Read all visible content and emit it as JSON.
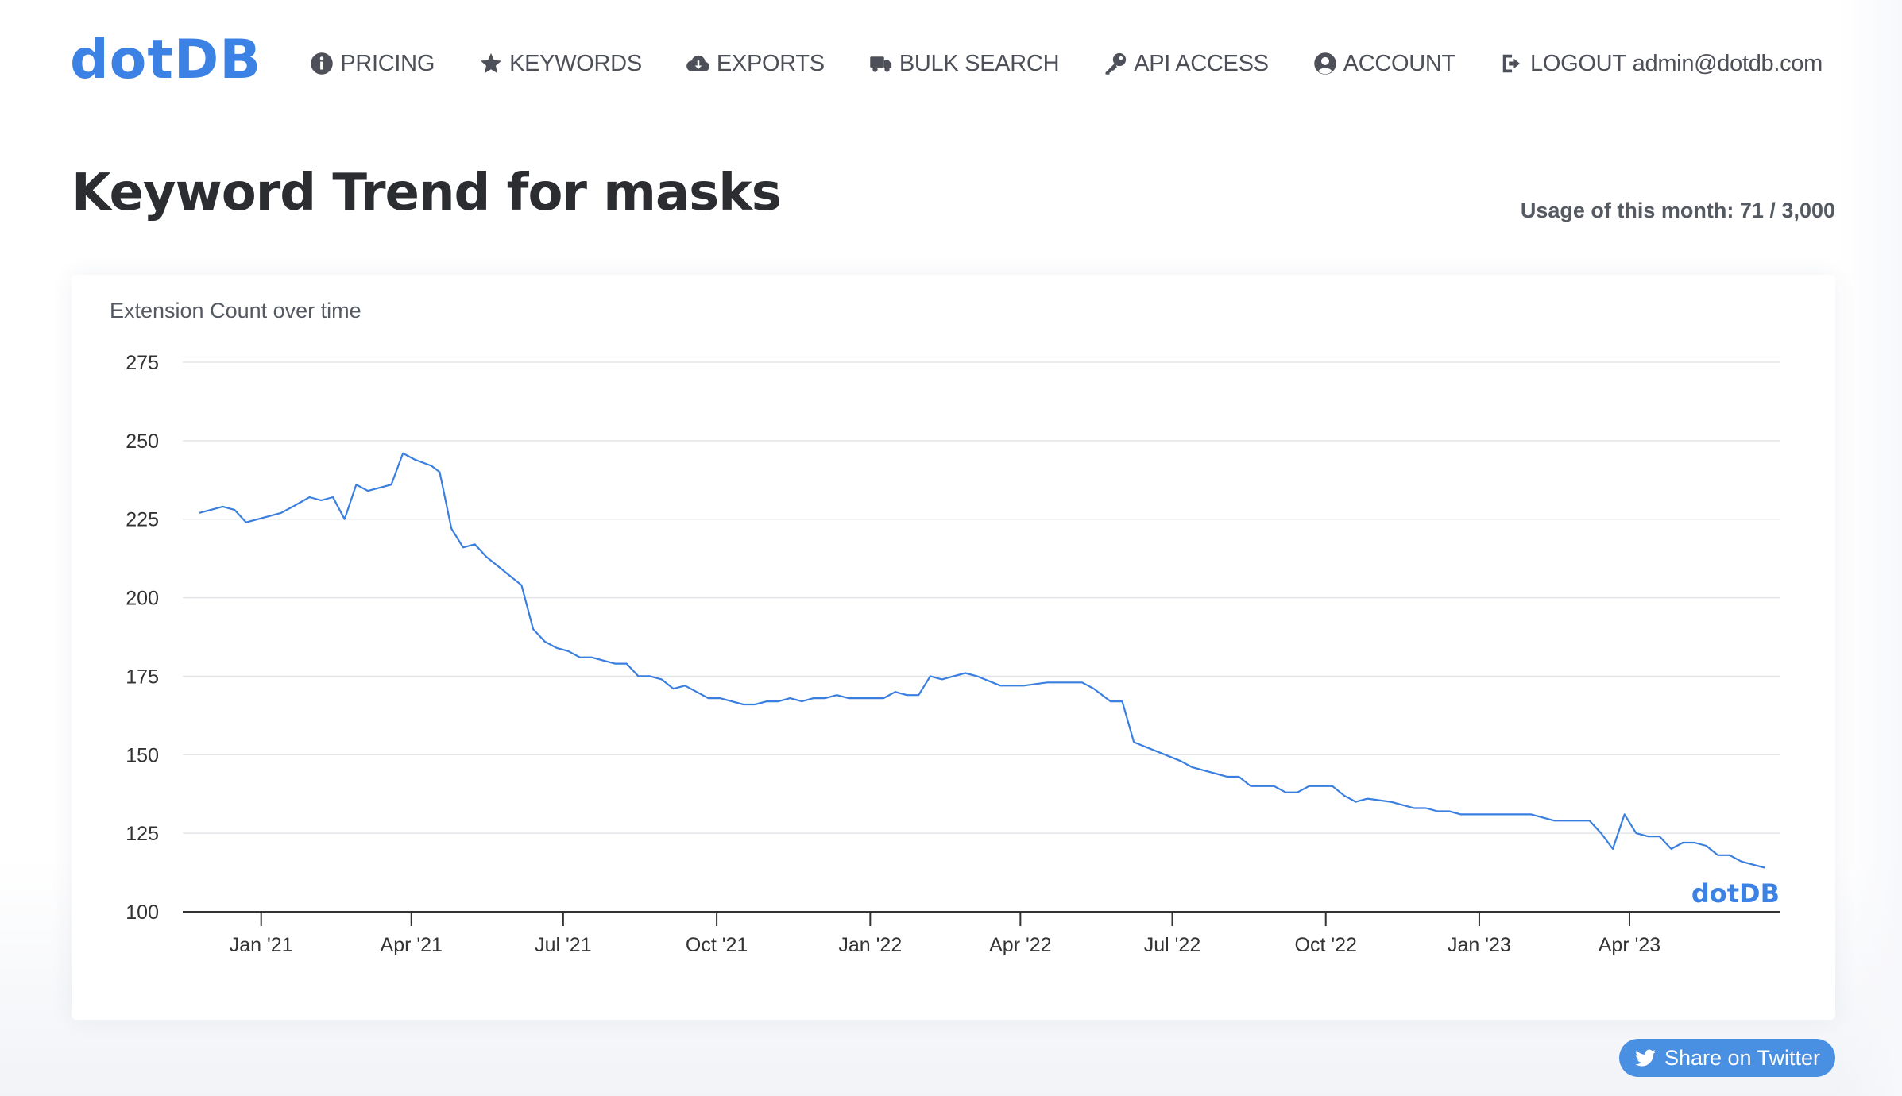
{
  "header": {
    "logo": "dotDB",
    "nav": [
      {
        "label": "PRICING",
        "icon": "info-circle-icon"
      },
      {
        "label": "KEYWORDS",
        "icon": "star-icon"
      },
      {
        "label": "EXPORTS",
        "icon": "cloud-download-icon"
      },
      {
        "label": "BULK SEARCH",
        "icon": "truck-icon"
      },
      {
        "label": "API ACCESS",
        "icon": "key-icon"
      },
      {
        "label": "ACCOUNT",
        "icon": "user-circle-icon"
      },
      {
        "label": "LOGOUT",
        "icon": "sign-out-icon",
        "email": "admin@dotdb.com"
      }
    ]
  },
  "page": {
    "title": "Keyword Trend for masks",
    "usage": "Usage of this month: 71 / 3,000"
  },
  "chart_card": {
    "label": "Extension Count over time",
    "watermark": "dotDB"
  },
  "share": {
    "label": "Share on Twitter",
    "icon": "twitter-icon"
  },
  "colors": {
    "accent": "#3c82e4",
    "line": "#3a7fe0",
    "share_button": "#4a90e2"
  },
  "chart_data": {
    "type": "line",
    "ylim": [
      100,
      275
    ],
    "yticks": [
      100,
      125,
      150,
      175,
      200,
      225,
      250,
      275
    ],
    "grid": true,
    "xlim": [
      "2020-11-15",
      "2023-06-30"
    ],
    "xticks": [
      {
        "date": "2021-01-01",
        "label": "Jan '21"
      },
      {
        "date": "2021-04-01",
        "label": "Apr '21"
      },
      {
        "date": "2021-07-01",
        "label": "Jul '21"
      },
      {
        "date": "2021-10-01",
        "label": "Oct '21"
      },
      {
        "date": "2022-01-01",
        "label": "Jan '22"
      },
      {
        "date": "2022-04-01",
        "label": "Apr '22"
      },
      {
        "date": "2022-07-01",
        "label": "Jul '22"
      },
      {
        "date": "2022-10-01",
        "label": "Oct '22"
      },
      {
        "date": "2023-01-01",
        "label": "Jan '23"
      },
      {
        "date": "2023-04-01",
        "label": "Apr '23"
      }
    ],
    "series": [
      {
        "points": [
          [
            "2020-11-25",
            227
          ],
          [
            "2020-12-09",
            229
          ],
          [
            "2020-12-16",
            228
          ],
          [
            "2020-12-23",
            224
          ],
          [
            "2021-01-06",
            226
          ],
          [
            "2021-01-13",
            227
          ],
          [
            "2021-01-20",
            229
          ],
          [
            "2021-01-30",
            232
          ],
          [
            "2021-02-06",
            231
          ],
          [
            "2021-02-13",
            232
          ],
          [
            "2021-02-20",
            225
          ],
          [
            "2021-02-27",
            236
          ],
          [
            "2021-03-06",
            234
          ],
          [
            "2021-03-20",
            236
          ],
          [
            "2021-03-27",
            246
          ],
          [
            "2021-04-03",
            244
          ],
          [
            "2021-04-13",
            242
          ],
          [
            "2021-04-18",
            240
          ],
          [
            "2021-04-25",
            222
          ],
          [
            "2021-05-02",
            216
          ],
          [
            "2021-05-09",
            217
          ],
          [
            "2021-05-16",
            213
          ],
          [
            "2021-06-06",
            204
          ],
          [
            "2021-06-13",
            190
          ],
          [
            "2021-06-20",
            186
          ],
          [
            "2021-06-27",
            184
          ],
          [
            "2021-07-04",
            183
          ],
          [
            "2021-07-11",
            181
          ],
          [
            "2021-07-18",
            181
          ],
          [
            "2021-07-25",
            180
          ],
          [
            "2021-08-01",
            179
          ],
          [
            "2021-08-08",
            179
          ],
          [
            "2021-08-15",
            175
          ],
          [
            "2021-08-22",
            175
          ],
          [
            "2021-08-29",
            174
          ],
          [
            "2021-09-05",
            171
          ],
          [
            "2021-09-12",
            172
          ],
          [
            "2021-09-19",
            170
          ],
          [
            "2021-09-26",
            168
          ],
          [
            "2021-10-03",
            168
          ],
          [
            "2021-10-10",
            167
          ],
          [
            "2021-10-17",
            166
          ],
          [
            "2021-10-24",
            166
          ],
          [
            "2021-10-31",
            167
          ],
          [
            "2021-11-07",
            167
          ],
          [
            "2021-11-14",
            168
          ],
          [
            "2021-11-21",
            167
          ],
          [
            "2021-11-28",
            168
          ],
          [
            "2021-12-05",
            168
          ],
          [
            "2021-12-12",
            169
          ],
          [
            "2021-12-19",
            168
          ],
          [
            "2021-12-26",
            168
          ],
          [
            "2022-01-02",
            168
          ],
          [
            "2022-01-09",
            168
          ],
          [
            "2022-01-16",
            170
          ],
          [
            "2022-01-23",
            169
          ],
          [
            "2022-01-30",
            169
          ],
          [
            "2022-02-06",
            175
          ],
          [
            "2022-02-13",
            174
          ],
          [
            "2022-02-20",
            175
          ],
          [
            "2022-02-27",
            176
          ],
          [
            "2022-03-06",
            175
          ],
          [
            "2022-03-20",
            172
          ],
          [
            "2022-04-03",
            172
          ],
          [
            "2022-04-17",
            173
          ],
          [
            "2022-05-08",
            173
          ],
          [
            "2022-05-15",
            171
          ],
          [
            "2022-05-25",
            167
          ],
          [
            "2022-06-01",
            167
          ],
          [
            "2022-06-08",
            154
          ],
          [
            "2022-06-22",
            151
          ],
          [
            "2022-07-06",
            148
          ],
          [
            "2022-07-13",
            146
          ],
          [
            "2022-07-20",
            145
          ],
          [
            "2022-07-27",
            144
          ],
          [
            "2022-08-03",
            143
          ],
          [
            "2022-08-10",
            143
          ],
          [
            "2022-08-17",
            140
          ],
          [
            "2022-08-24",
            140
          ],
          [
            "2022-08-31",
            140
          ],
          [
            "2022-09-07",
            138
          ],
          [
            "2022-09-14",
            138
          ],
          [
            "2022-09-21",
            140
          ],
          [
            "2022-10-05",
            140
          ],
          [
            "2022-10-12",
            137
          ],
          [
            "2022-10-19",
            135
          ],
          [
            "2022-10-26",
            136
          ],
          [
            "2022-11-09",
            135
          ],
          [
            "2022-11-16",
            134
          ],
          [
            "2022-11-23",
            133
          ],
          [
            "2022-11-30",
            133
          ],
          [
            "2022-12-07",
            132
          ],
          [
            "2022-12-14",
            132
          ],
          [
            "2022-12-21",
            131
          ],
          [
            "2023-01-04",
            131
          ],
          [
            "2023-01-18",
            131
          ],
          [
            "2023-02-01",
            131
          ],
          [
            "2023-02-15",
            129
          ],
          [
            "2023-03-01",
            129
          ],
          [
            "2023-03-08",
            129
          ],
          [
            "2023-03-15",
            125
          ],
          [
            "2023-03-22",
            120
          ],
          [
            "2023-03-29",
            131
          ],
          [
            "2023-04-05",
            125
          ],
          [
            "2023-04-12",
            124
          ],
          [
            "2023-04-19",
            124
          ],
          [
            "2023-04-26",
            120
          ],
          [
            "2023-05-03",
            122
          ],
          [
            "2023-05-10",
            122
          ],
          [
            "2023-05-17",
            121
          ],
          [
            "2023-05-24",
            118
          ],
          [
            "2023-05-31",
            118
          ],
          [
            "2023-06-07",
            116
          ],
          [
            "2023-06-21",
            114
          ]
        ]
      }
    ]
  }
}
